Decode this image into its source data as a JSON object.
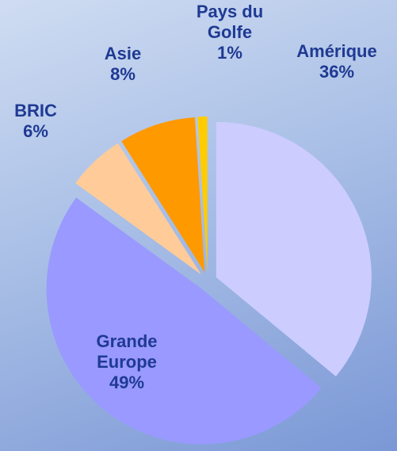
{
  "chart_data": {
    "type": "pie",
    "categories": [
      "Amérique",
      "Grande Europe",
      "BRIC",
      "Asie",
      "Pays du Golfe"
    ],
    "values": [
      36,
      49,
      6,
      8,
      1
    ],
    "value_labels": [
      "36%",
      "49%",
      "6%",
      "8%",
      "1%"
    ],
    "colors": [
      "#ccccff",
      "#9999ff",
      "#ffcc99",
      "#ff9900",
      "#ffcc00"
    ]
  }
}
